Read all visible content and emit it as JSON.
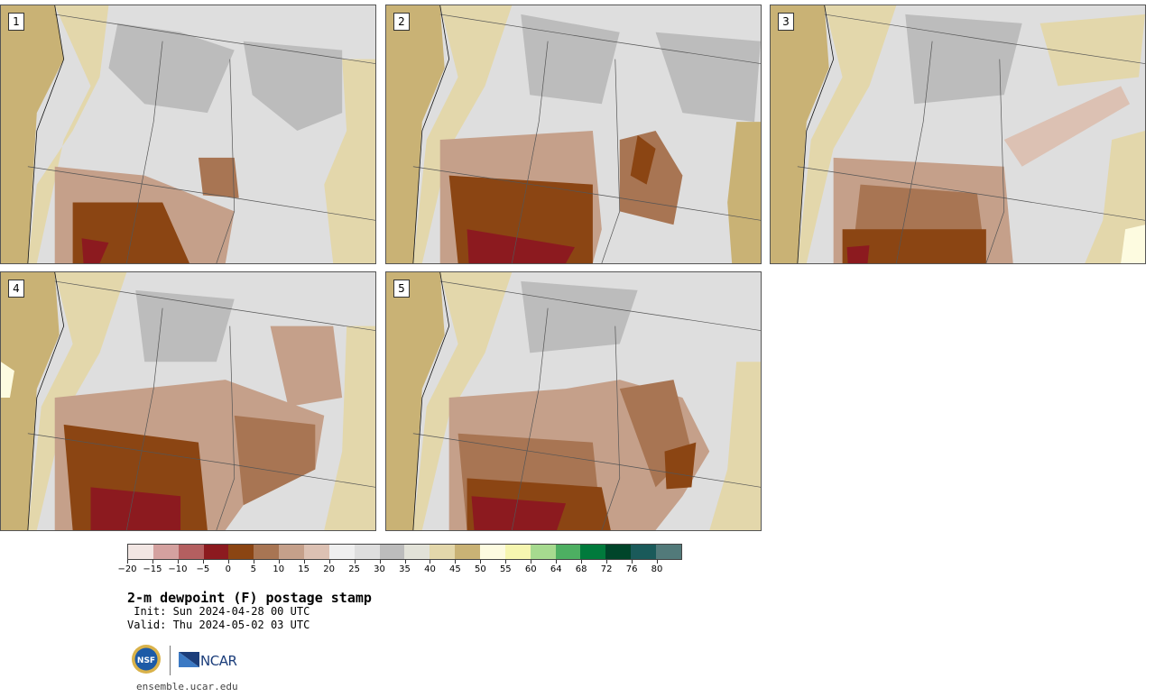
{
  "panels": [
    {
      "label": "1"
    },
    {
      "label": "2"
    },
    {
      "label": "3"
    },
    {
      "label": "4"
    },
    {
      "label": "5"
    }
  ],
  "colorbar": {
    "colors": [
      "#f2e6e3",
      "#d4a19f",
      "#b45f60",
      "#8c1a1f",
      "#8b4513",
      "#a87553",
      "#c5a08a",
      "#dcc1b3",
      "#efefef",
      "#dedede",
      "#bcbcbc",
      "#e2e2d8",
      "#e3d7ab",
      "#c9b275",
      "#fdfbe0",
      "#f6f6b0",
      "#a6da8f",
      "#4daf62",
      "#007a3c",
      "#00452a",
      "#1a5a5a",
      "#527a7a"
    ],
    "tick_labels": [
      "−20",
      "−15",
      "−10",
      "−5",
      "0",
      "5",
      "10",
      "15",
      "20",
      "25",
      "30",
      "35",
      "40",
      "45",
      "50",
      "55",
      "60",
      "64",
      "68",
      "72",
      "76",
      "80"
    ]
  },
  "title": "2-m dewpoint (F) postage stamp",
  "init": " Init: Sun 2024-04-28 00 UTC",
  "valid": "Valid: Thu 2024-05-02 03 UTC",
  "logos": {
    "nsf": "NSF",
    "ncar": "NCAR"
  },
  "footer_url": "ensemble.ucar.edu"
}
